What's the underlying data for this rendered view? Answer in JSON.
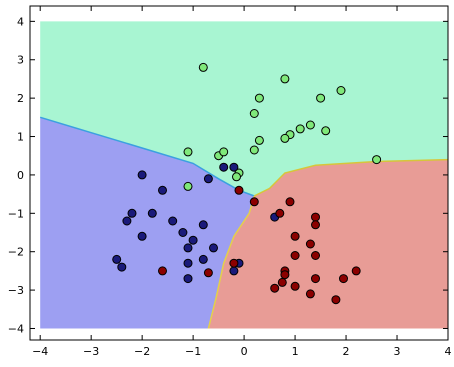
{
  "chart_data": {
    "type": "scatter",
    "title": "",
    "xlabel": "",
    "ylabel": "",
    "xlim": [
      -4.2,
      4.0
    ],
    "ylim": [
      -4.3,
      4.4
    ],
    "grid": false,
    "legend": "none",
    "xticks": [
      -4,
      -3,
      -2,
      -1,
      0,
      1,
      2,
      3,
      4
    ],
    "yticks": [
      -4,
      -3,
      -2,
      -1,
      0,
      1,
      2,
      3,
      4
    ],
    "xtick_labels": [
      "−4",
      "−3",
      "−2",
      "−1",
      "0",
      "1",
      "2",
      "3",
      "4"
    ],
    "ytick_labels": [
      "−4",
      "−3",
      "−2",
      "−1",
      "0",
      "1",
      "2",
      "3",
      "4"
    ],
    "decision_regions": [
      {
        "class": "green",
        "color": "#a8f5d2",
        "polygon": [
          [
            -4,
            4
          ],
          [
            4,
            4
          ],
          [
            4,
            0.4
          ],
          [
            2.6,
            0.35
          ],
          [
            1.4,
            0.25
          ],
          [
            0.8,
            0.05
          ],
          [
            0.5,
            -0.35
          ],
          [
            0.2,
            -0.55
          ],
          [
            -0.1,
            -0.4
          ],
          [
            -0.5,
            -0.1
          ],
          [
            -1.0,
            0.3
          ],
          [
            -2.0,
            0.7
          ],
          [
            -3.0,
            1.1
          ],
          [
            -4,
            1.5
          ]
        ]
      },
      {
        "class": "blue",
        "color": "#9d9ff2",
        "polygon": [
          [
            -4,
            1.5
          ],
          [
            -3.0,
            1.1
          ],
          [
            -2.0,
            0.7
          ],
          [
            -1.0,
            0.3
          ],
          [
            -0.5,
            -0.1
          ],
          [
            -0.1,
            -0.4
          ],
          [
            0.2,
            -0.55
          ],
          [
            0.1,
            -1.0
          ],
          [
            -0.2,
            -1.6
          ],
          [
            -0.4,
            -2.3
          ],
          [
            -0.55,
            -3.2
          ],
          [
            -0.7,
            -4
          ],
          [
            -4,
            -4
          ]
        ]
      },
      {
        "class": "red",
        "color": "#e89c96",
        "polygon": [
          [
            0.2,
            -0.55
          ],
          [
            0.5,
            -0.35
          ],
          [
            0.8,
            0.05
          ],
          [
            1.4,
            0.25
          ],
          [
            2.6,
            0.35
          ],
          [
            4,
            0.4
          ],
          [
            4,
            -4
          ],
          [
            -0.7,
            -4
          ],
          [
            -0.55,
            -3.2
          ],
          [
            -0.4,
            -2.3
          ],
          [
            -0.2,
            -1.6
          ],
          [
            0.1,
            -1.0
          ]
        ]
      }
    ],
    "series": [
      {
        "class": "green",
        "color": "#7fe87a",
        "points": [
          [
            -0.8,
            2.8
          ],
          [
            0.8,
            2.5
          ],
          [
            1.9,
            2.2
          ],
          [
            1.5,
            2.0
          ],
          [
            0.3,
            2.0
          ],
          [
            0.2,
            1.6
          ],
          [
            1.3,
            1.3
          ],
          [
            1.1,
            1.2
          ],
          [
            0.9,
            1.05
          ],
          [
            0.8,
            0.95
          ],
          [
            1.6,
            1.15
          ],
          [
            0.3,
            0.9
          ],
          [
            0.2,
            0.65
          ],
          [
            -1.1,
            0.6
          ],
          [
            -0.5,
            0.5
          ],
          [
            -0.4,
            0.6
          ],
          [
            -0.1,
            0.05
          ],
          [
            -0.15,
            -0.05
          ],
          [
            2.6,
            0.4
          ],
          [
            -1.1,
            -0.3
          ]
        ]
      },
      {
        "class": "blue",
        "color": "#1a1a7a",
        "points": [
          [
            -2.0,
            0.0
          ],
          [
            -0.4,
            0.2
          ],
          [
            -0.2,
            0.2
          ],
          [
            -0.7,
            -0.1
          ],
          [
            -1.6,
            -0.4
          ],
          [
            -2.2,
            -1.0
          ],
          [
            -1.8,
            -1.0
          ],
          [
            -2.3,
            -1.2
          ],
          [
            -1.4,
            -1.2
          ],
          [
            -0.8,
            -1.3
          ],
          [
            -1.2,
            -1.5
          ],
          [
            -2.0,
            -1.6
          ],
          [
            -1.0,
            -1.7
          ],
          [
            -1.1,
            -1.9
          ],
          [
            -0.6,
            -1.9
          ],
          [
            -0.8,
            -2.2
          ],
          [
            -2.5,
            -2.2
          ],
          [
            -1.1,
            -2.3
          ],
          [
            -2.4,
            -2.4
          ],
          [
            -0.1,
            -2.3
          ],
          [
            -1.1,
            -2.7
          ],
          [
            0.6,
            -1.1
          ],
          [
            -0.2,
            -2.5
          ]
        ]
      },
      {
        "class": "red",
        "color": "#8b0000",
        "points": [
          [
            -0.1,
            -0.4
          ],
          [
            0.2,
            -0.7
          ],
          [
            0.9,
            -0.7
          ],
          [
            0.7,
            -1.0
          ],
          [
            1.4,
            -1.1
          ],
          [
            1.4,
            -1.3
          ],
          [
            1.0,
            -1.6
          ],
          [
            1.3,
            -1.8
          ],
          [
            1.0,
            -2.1
          ],
          [
            1.4,
            -2.1
          ],
          [
            -0.2,
            -2.3
          ],
          [
            0.8,
            -2.5
          ],
          [
            2.2,
            -2.5
          ],
          [
            0.8,
            -2.6
          ],
          [
            1.4,
            -2.7
          ],
          [
            1.95,
            -2.7
          ],
          [
            0.75,
            -2.8
          ],
          [
            0.6,
            -2.95
          ],
          [
            1.0,
            -2.9
          ],
          [
            1.3,
            -3.1
          ],
          [
            1.8,
            -3.25
          ],
          [
            -1.6,
            -2.5
          ],
          [
            -0.7,
            -2.55
          ]
        ]
      }
    ]
  }
}
